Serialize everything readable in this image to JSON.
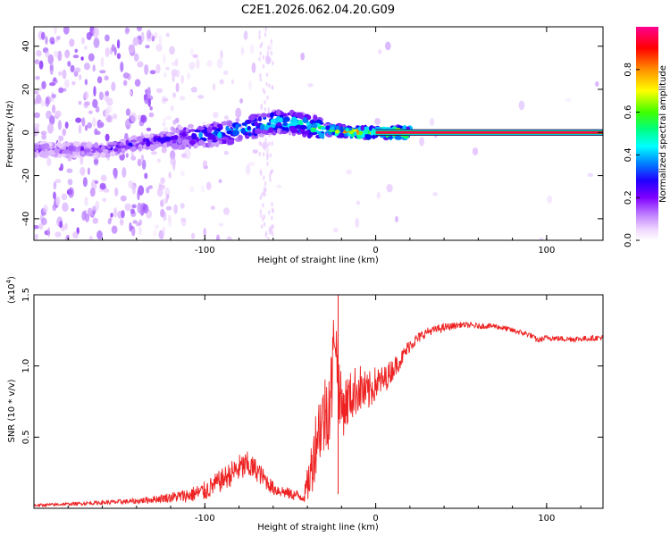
{
  "title": "C2E1.2026.062.04.20.G09",
  "chart_data": [
    {
      "type": "heatmap",
      "title": "C2E1.2026.062.04.20.G09",
      "xlabel": "Height of straight line (km)",
      "ylabel": "Frequency (Hz)",
      "xlim": [
        -200,
        133
      ],
      "ylim": [
        -50,
        49
      ],
      "xticks": [
        -100,
        0,
        100
      ],
      "xtick_labels": [
        "-100",
        "0",
        "100"
      ],
      "yticks": [
        -40,
        -20,
        0,
        20,
        40
      ],
      "ytick_labels": [
        "-40",
        "-20",
        "0",
        "20",
        "40"
      ],
      "ridge": {
        "description": "dominant frequency track vs height",
        "x": [
          -190,
          -160,
          -130,
          -110,
          -95,
          -80,
          -65,
          -55,
          -45,
          -35,
          -25,
          -15,
          -5,
          5,
          20,
          60,
          100,
          133
        ],
        "freq_center": [
          -8,
          -8,
          -4,
          -2,
          -1,
          1,
          4,
          5,
          4,
          2,
          1,
          0,
          0,
          0,
          0,
          0,
          0,
          0
        ],
        "amplitude": [
          0.22,
          0.25,
          0.3,
          0.35,
          0.45,
          0.5,
          0.55,
          0.5,
          0.55,
          0.6,
          0.7,
          0.8,
          0.85,
          0.9,
          0.95,
          0.95,
          0.95,
          0.95
        ]
      },
      "colorbar": {
        "label": "Normalized spectral amplitude",
        "range": [
          0,
          1
        ],
        "ticks": [
          0.0,
          0.2,
          0.4,
          0.6,
          0.8
        ],
        "tick_labels": [
          "0.0",
          "0.2",
          "0.4",
          "0.6",
          "0.8"
        ],
        "colors": [
          "#ffffff",
          "#e8c8ff",
          "#b070ff",
          "#6a00ff",
          "#0000ff",
          "#00a8ff",
          "#00ffff",
          "#00ff60",
          "#80ff00",
          "#ffff00",
          "#ff8000",
          "#ff0000",
          "#ff00a0"
        ]
      }
    },
    {
      "type": "line",
      "xlabel": "Height of straight line (km)",
      "ylabel": "SNR (10 * v/v)",
      "y_multiplier_label": "(x10",
      "y_multiplier_exp": "4",
      "y_multiplier_close": ")",
      "xlim": [
        -200,
        133
      ],
      "ylim": [
        0,
        1.5
      ],
      "xticks": [
        -100,
        0,
        100
      ],
      "xtick_labels": [
        "-100",
        "0",
        "100"
      ],
      "yticks": [
        0.5,
        1.0,
        1.5
      ],
      "ytick_labels": [
        "0.5",
        "1.0",
        "1.5"
      ],
      "series": [
        {
          "name": "SNR",
          "color": "#ee2222",
          "x": [
            -200,
            -180,
            -160,
            -140,
            -125,
            -110,
            -100,
            -90,
            -80,
            -75,
            -70,
            -60,
            -50,
            -42,
            -38,
            -34,
            -30,
            -26,
            -24,
            -22,
            -20,
            -15,
            -10,
            -5,
            0,
            5,
            10,
            15,
            20,
            30,
            40,
            50,
            60,
            70,
            80,
            90,
            95,
            100,
            110,
            120,
            133
          ],
          "values": [
            0.02,
            0.03,
            0.04,
            0.05,
            0.07,
            0.09,
            0.12,
            0.2,
            0.28,
            0.3,
            0.27,
            0.14,
            0.1,
            0.08,
            0.25,
            0.55,
            0.65,
            0.8,
            1.3,
            0.9,
            0.7,
            0.78,
            0.85,
            0.8,
            0.88,
            0.9,
            0.98,
            1.05,
            1.15,
            1.24,
            1.27,
            1.29,
            1.28,
            1.28,
            1.25,
            1.22,
            1.18,
            1.2,
            1.19,
            1.19,
            1.2
          ],
          "noise": [
            0.01,
            0.01,
            0.015,
            0.02,
            0.03,
            0.05,
            0.07,
            0.08,
            0.1,
            0.1,
            0.08,
            0.05,
            0.04,
            0.04,
            0.2,
            0.25,
            0.3,
            0.35,
            0.2,
            0.25,
            0.22,
            0.18,
            0.18,
            0.15,
            0.12,
            0.1,
            0.08,
            0.06,
            0.05,
            0.03,
            0.03,
            0.02,
            0.02,
            0.02,
            0.02,
            0.02,
            0.02,
            0.02,
            0.02,
            0.02,
            0.02
          ]
        }
      ]
    }
  ]
}
